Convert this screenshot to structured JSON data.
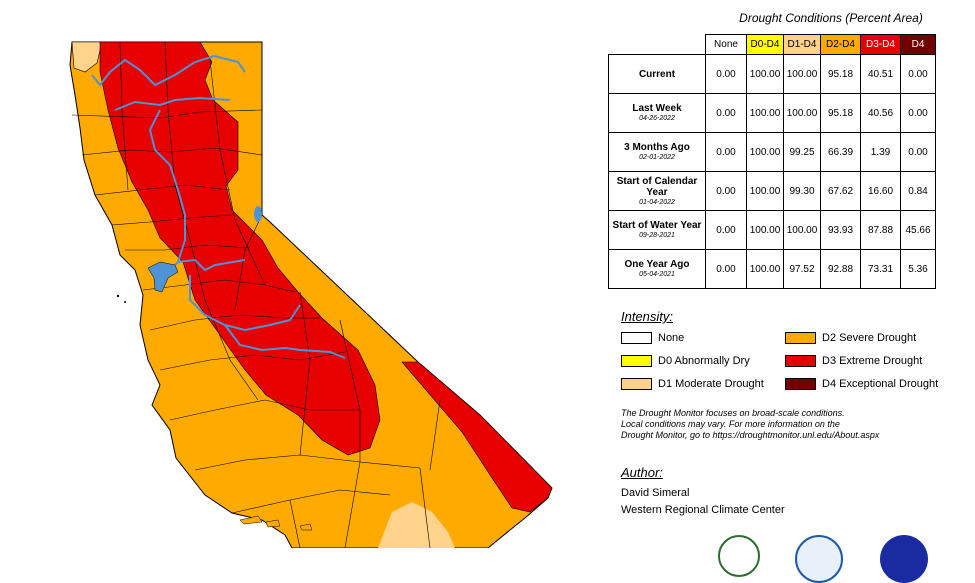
{
  "colors": {
    "d1": "#ffd38c",
    "d2": "#ffaa00",
    "d3": "#e60000",
    "d4": "#730000",
    "d0": "#ffff00",
    "water": "#4d93d6",
    "county_line": "#000000"
  },
  "table": {
    "title": "Drought Conditions (Percent Area)",
    "headers": [
      "None",
      "D0-D4",
      "D1-D4",
      "D2-D4",
      "D3-D4",
      "D4"
    ],
    "rows": [
      {
        "label": "Current",
        "date": "",
        "values": [
          "0.00",
          "100.00",
          "100.00",
          "95.18",
          "40.51",
          "0.00"
        ]
      },
      {
        "label": "Last Week",
        "date": "04-26-2022",
        "values": [
          "0.00",
          "100.00",
          "100.00",
          "95.18",
          "40.56",
          "0.00"
        ]
      },
      {
        "label": "3 Months Ago",
        "date": "02-01-2022",
        "values": [
          "0.00",
          "100.00",
          "99.25",
          "66.39",
          "1.39",
          "0.00"
        ]
      },
      {
        "label": "Start of Calendar Year",
        "date": "01-04-2022",
        "values": [
          "0.00",
          "100.00",
          "99.30",
          "67.62",
          "16.60",
          "0.84"
        ]
      },
      {
        "label": "Start of Water Year",
        "date": "09-28-2021",
        "values": [
          "0.00",
          "100.00",
          "100.00",
          "93.93",
          "87.88",
          "45.66"
        ]
      },
      {
        "label": "One Year Ago",
        "date": "05-04-2021",
        "values": [
          "0.00",
          "100.00",
          "97.52",
          "92.88",
          "73.31",
          "5.36"
        ]
      }
    ]
  },
  "legend": {
    "title": "Intensity:",
    "items": [
      {
        "label": "None",
        "color": "#ffffff"
      },
      {
        "label": "D0 Abnormally Dry",
        "color": "#ffff00"
      },
      {
        "label": "D1 Moderate Drought",
        "color": "#ffd38c"
      },
      {
        "label": "D2 Severe Drought",
        "color": "#ffaa00"
      },
      {
        "label": "D3 Extreme Drought",
        "color": "#e60000"
      },
      {
        "label": "D4 Exceptional Drought",
        "color": "#730000"
      }
    ]
  },
  "note": {
    "line1": "The Drought Monitor focuses on broad-scale conditions.",
    "line2": "Local conditions may vary. For more information on the",
    "line3": "Drought Monitor, go to https://droughtmonitor.unl.edu/About.aspx"
  },
  "author": {
    "title": "Author:",
    "name": "David Simeral",
    "org": "Western Regional Climate Center"
  },
  "logos": [
    "usda-logo",
    "noaa-logo",
    "nidis-logo"
  ]
}
